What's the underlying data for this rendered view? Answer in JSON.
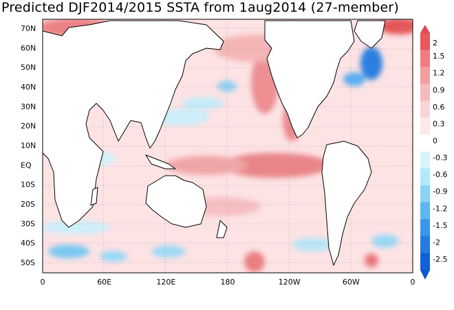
{
  "title": "Predicted DJF2014/2015 SSTA from 1aug2014 (27-member)",
  "lat_labels": [
    "70N",
    "60N",
    "50N",
    "40N",
    "30N",
    "20N",
    "10N",
    "EQ",
    "10S",
    "20S",
    "30S",
    "40S",
    "50S"
  ],
  "lon_labels": [
    "0",
    "60E",
    "120E",
    "180",
    "120W",
    "60W",
    "0"
  ],
  "colorbar": {
    "labels": [
      "2",
      "1.5",
      "1.2",
      "0.9",
      "0.6",
      "0.3",
      "0",
      "-0.3",
      "-0.6",
      "-0.9",
      "-1.2",
      "-1.5",
      "-2",
      "-2.5"
    ],
    "colors": [
      "#e8585c",
      "#ef7c80",
      "#f29ea0",
      "#f6babd",
      "#f9d5d6",
      "#fde7e8",
      "#ffffff",
      "#d9f4fb",
      "#b3e8fa",
      "#8ad3f6",
      "#5cb6f0",
      "#3b95ea",
      "#247ae2",
      "#1060d6"
    ]
  },
  "colors": {
    "land": "#ffffff",
    "coast": "#000000",
    "grid": "#9a9a9a"
  }
}
